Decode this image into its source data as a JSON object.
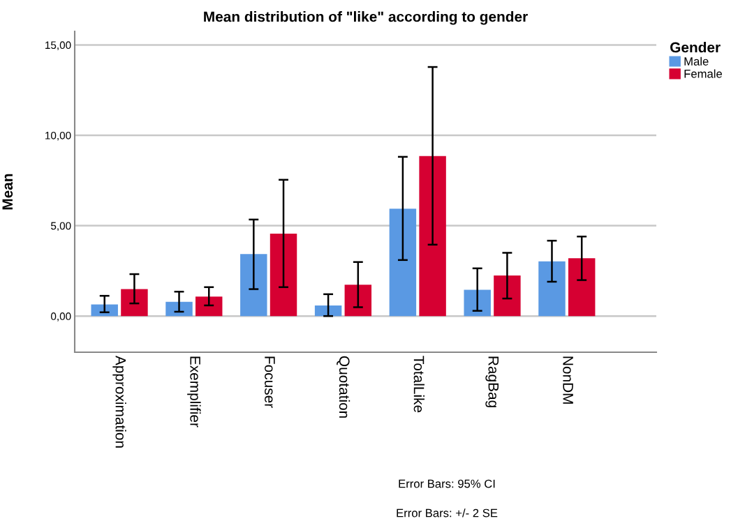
{
  "chart_data": {
    "type": "bar",
    "title": "Mean distribution of \"like\" according to gender",
    "ylabel": "Mean",
    "legend_title": "Gender",
    "categories": [
      "Approximation",
      "Exemplifier",
      "Focuser",
      "Quotation",
      "TotalLike",
      "RagBag",
      "NonDM"
    ],
    "series": [
      {
        "name": "Male",
        "color": "#5a99e3",
        "values": [
          0.64,
          0.79,
          3.43,
          0.59,
          5.94,
          1.45,
          3.03
        ],
        "errors": [
          [
            0.21,
            1.12
          ],
          [
            0.24,
            1.35
          ],
          [
            1.49,
            5.34
          ],
          [
            0.0,
            1.21
          ],
          [
            3.1,
            8.81
          ],
          [
            0.29,
            2.64
          ],
          [
            1.9,
            4.17
          ]
        ]
      },
      {
        "name": "Female",
        "color": "#d60032",
        "values": [
          1.49,
          1.08,
          4.56,
          1.73,
          8.85,
          2.24,
          3.2
        ],
        "errors": [
          [
            0.7,
            2.32
          ],
          [
            0.59,
            1.6
          ],
          [
            1.6,
            7.54
          ],
          [
            0.49,
            2.99
          ],
          [
            3.95,
            13.78
          ],
          [
            0.97,
            3.5
          ],
          [
            1.99,
            4.4
          ]
        ]
      }
    ],
    "ylim": [
      -2,
      15.75
    ],
    "yticks": [
      {
        "value": 0,
        "label": "0,00"
      },
      {
        "value": 5,
        "label": "5,00"
      },
      {
        "value": 10,
        "label": "10,00"
      },
      {
        "value": 15,
        "label": "15,00"
      }
    ],
    "grid": "y",
    "legend": "top right",
    "annotations": [
      "Error Bars: 95% CI",
      "Error Bars: +/- 2 SE"
    ]
  }
}
